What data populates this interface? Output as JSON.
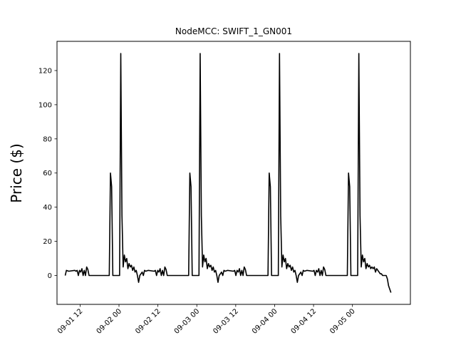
{
  "chart_data": {
    "type": "line",
    "title": "NodeMCC: SWIFT_1_GN001",
    "xlabel": "",
    "ylabel": "Price ($)",
    "ylim": [
      -16.9,
      137.1
    ],
    "xlim": [
      "2017-09-01 04:53",
      "2017-09-05 17:52"
    ],
    "grid": false,
    "legend": "none",
    "line_color": "#000000",
    "x_ticks": [
      {
        "value": "2017-09-01 12:00",
        "label": "09-01 12"
      },
      {
        "value": "2017-09-02 00:00",
        "label": "09-02 00"
      },
      {
        "value": "2017-09-02 12:00",
        "label": "09-02 12"
      },
      {
        "value": "2017-09-03 00:00",
        "label": "09-03 00"
      },
      {
        "value": "2017-09-03 12:00",
        "label": "09-03 12"
      },
      {
        "value": "2017-09-04 00:00",
        "label": "09-04 00"
      },
      {
        "value": "2017-09-04 12:00",
        "label": "09-04 12"
      },
      {
        "value": "2017-09-05 00:00",
        "label": "09-05 00"
      }
    ],
    "y_ticks": [
      {
        "value": 0,
        "label": "0"
      },
      {
        "value": 20,
        "label": "20"
      },
      {
        "value": 40,
        "label": "40"
      },
      {
        "value": 60,
        "label": "60"
      },
      {
        "value": 80,
        "label": "80"
      },
      {
        "value": 100,
        "label": "100"
      },
      {
        "value": 120,
        "label": "120"
      }
    ],
    "series": [
      {
        "x": [
          "2017-09-01 07:25",
          "2017-09-01 07:47",
          "2017-09-01 08:31",
          "2017-09-01 10:22",
          "2017-09-01 10:44",
          "2017-09-01 11:06",
          "2017-09-01 11:28",
          "2017-09-01 11:50",
          "2017-09-01 12:12",
          "2017-09-01 12:34",
          "2017-09-01 12:56",
          "2017-09-01 13:18",
          "2017-09-01 13:40",
          "2017-09-01 14:02",
          "2017-09-01 14:24",
          "2017-09-01 14:46",
          "2017-09-01 21:00",
          "2017-09-01 21:22",
          "2017-09-01 21:44",
          "2017-09-01 22:06",
          "2017-09-01 22:50",
          "2017-09-02 00:11",
          "2017-09-02 00:33",
          "2017-09-02 00:55",
          "2017-09-02 01:17",
          "2017-09-02 01:39",
          "2017-09-02 02:01",
          "2017-09-02 02:23",
          "2017-09-02 02:45",
          "2017-09-02 03:07",
          "2017-09-02 03:29",
          "2017-09-02 03:51",
          "2017-09-02 04:13",
          "2017-09-02 04:35",
          "2017-09-02 04:57",
          "2017-09-02 05:19",
          "2017-09-02 05:41",
          "2017-09-02 06:03",
          "2017-09-02 06:25",
          "2017-09-02 06:47",
          "2017-09-02 07:09",
          "2017-09-02 07:31",
          "2017-09-02 07:53",
          "2017-09-02 08:15",
          "2017-09-02 08:59",
          "2017-09-02 10:51",
          "2017-09-02 11:13",
          "2017-09-02 11:35",
          "2017-09-02 11:57",
          "2017-09-02 12:19",
          "2017-09-02 12:41",
          "2017-09-02 13:03",
          "2017-09-02 13:25",
          "2017-09-02 13:47",
          "2017-09-02 14:09",
          "2017-09-02 14:31",
          "2017-09-02 14:53",
          "2017-09-02 15:15",
          "2017-09-02 21:29",
          "2017-09-02 21:51",
          "2017-09-02 22:13",
          "2017-09-02 22:35",
          "2017-09-02 23:19",
          "2017-09-03 00:40",
          "2017-09-03 01:02",
          "2017-09-03 01:24",
          "2017-09-03 01:46",
          "2017-09-03 02:08",
          "2017-09-03 02:30",
          "2017-09-03 02:52",
          "2017-09-03 03:14",
          "2017-09-03 03:36",
          "2017-09-03 03:58",
          "2017-09-03 04:20",
          "2017-09-03 04:42",
          "2017-09-03 05:04",
          "2017-09-03 05:26",
          "2017-09-03 05:48",
          "2017-09-03 06:10",
          "2017-09-03 06:32",
          "2017-09-03 06:54",
          "2017-09-03 07:16",
          "2017-09-03 07:38",
          "2017-09-03 08:00",
          "2017-09-03 08:22",
          "2017-09-03 08:44",
          "2017-09-03 09:28",
          "2017-09-03 11:19",
          "2017-09-03 11:41",
          "2017-09-03 12:03",
          "2017-09-03 12:25",
          "2017-09-03 12:47",
          "2017-09-03 13:09",
          "2017-09-03 13:31",
          "2017-09-03 13:53",
          "2017-09-03 14:15",
          "2017-09-03 14:37",
          "2017-09-03 14:59",
          "2017-09-03 15:21",
          "2017-09-03 15:43",
          "2017-09-03 21:57",
          "2017-09-03 22:19",
          "2017-09-03 22:41",
          "2017-09-03 23:03",
          "2017-09-03 23:47",
          "2017-09-04 01:08",
          "2017-09-04 01:30",
          "2017-09-04 01:52",
          "2017-09-04 02:14",
          "2017-09-04 02:36",
          "2017-09-04 02:58",
          "2017-09-04 03:20",
          "2017-09-04 03:42",
          "2017-09-04 04:04",
          "2017-09-04 04:26",
          "2017-09-04 04:48",
          "2017-09-04 05:10",
          "2017-09-04 05:32",
          "2017-09-04 05:54",
          "2017-09-04 06:16",
          "2017-09-04 06:38",
          "2017-09-04 07:00",
          "2017-09-04 07:22",
          "2017-09-04 07:44",
          "2017-09-04 08:06",
          "2017-09-04 08:28",
          "2017-09-04 08:50",
          "2017-09-04 09:12",
          "2017-09-04 09:56",
          "2017-09-04 11:47",
          "2017-09-04 12:09",
          "2017-09-04 12:31",
          "2017-09-04 12:53",
          "2017-09-04 13:15",
          "2017-09-04 13:37",
          "2017-09-04 13:59",
          "2017-09-04 14:21",
          "2017-09-04 14:43",
          "2017-09-04 15:05",
          "2017-09-04 15:27",
          "2017-09-04 15:49",
          "2017-09-04 16:11",
          "2017-09-04 22:25",
          "2017-09-04 22:47",
          "2017-09-04 23:09",
          "2017-09-04 23:31",
          "2017-09-05 00:15",
          "2017-09-05 01:36",
          "2017-09-05 01:58",
          "2017-09-05 02:20",
          "2017-09-05 02:42",
          "2017-09-05 03:04",
          "2017-09-05 03:26",
          "2017-09-05 03:48",
          "2017-09-05 04:10",
          "2017-09-05 04:32",
          "2017-09-05 04:54",
          "2017-09-05 05:16",
          "2017-09-05 05:38",
          "2017-09-05 06:00",
          "2017-09-05 06:22",
          "2017-09-05 06:44",
          "2017-09-05 07:06",
          "2017-09-05 07:28",
          "2017-09-05 07:50",
          "2017-09-05 08:12",
          "2017-09-05 08:34",
          "2017-09-05 08:56",
          "2017-09-05 09:18",
          "2017-09-05 09:40",
          "2017-09-05 10:02",
          "2017-09-05 10:24",
          "2017-09-05 10:46",
          "2017-09-05 11:08",
          "2017-09-05 11:30",
          "2017-09-05 11:52"
        ],
        "y": [
          0,
          3,
          2.5,
          3,
          2.5,
          3,
          0,
          3,
          2,
          4,
          0,
          3,
          0,
          5,
          3.5,
          0,
          0,
          60,
          52,
          0,
          0,
          0,
          130,
          35,
          5,
          12,
          8,
          10,
          4,
          7,
          5,
          6,
          3,
          5,
          2,
          3,
          0,
          -4,
          0,
          1,
          2,
          0,
          3,
          2.5,
          3,
          2.5,
          3,
          0,
          3,
          2,
          4,
          0,
          3,
          0,
          5,
          3.5,
          0,
          0,
          0,
          60,
          52,
          0,
          0,
          0,
          130,
          35,
          5,
          12,
          8,
          10,
          4,
          7,
          5,
          6,
          3,
          5,
          2,
          3,
          0,
          -4,
          0,
          1,
          2,
          0,
          3,
          2.5,
          3,
          2.5,
          3,
          0,
          3,
          2,
          4,
          0,
          3,
          0,
          5,
          3.5,
          0,
          0,
          0,
          60,
          52,
          0,
          0,
          0,
          130,
          35,
          5,
          12,
          8,
          10,
          4,
          7,
          5,
          6,
          3,
          5,
          2,
          3,
          0,
          -4,
          0,
          1,
          2,
          0,
          3,
          2.5,
          3,
          2.5,
          3,
          0,
          3,
          2,
          4,
          0,
          3,
          0,
          5,
          3.5,
          0,
          0,
          0,
          60,
          52,
          0,
          0,
          0,
          130,
          35,
          5,
          12,
          8,
          10,
          4,
          7,
          5,
          6,
          4,
          5,
          4,
          5,
          2,
          4,
          3,
          2,
          1,
          1,
          0,
          0,
          0,
          0,
          -2,
          -6,
          -8,
          -10
        ]
      }
    ]
  }
}
